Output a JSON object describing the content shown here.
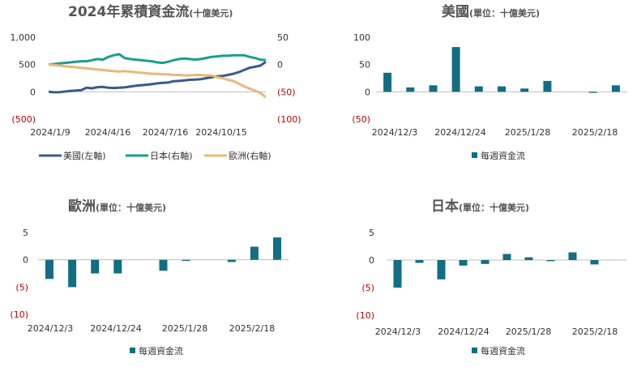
{
  "colors": {
    "us": "#3a5a8c",
    "jp": "#1a9e8f",
    "eu": "#e8b87a",
    "bar": "#126e82",
    "axis": "#bfbfbf",
    "negative": "#c00000"
  },
  "chart_data": [
    {
      "id": "cumulative",
      "type": "line",
      "title": "2024年累積資金流",
      "title_unit": "(十億美元)",
      "x_ticks": [
        "2024/1/9",
        "2024/4/16",
        "2024/7/16",
        "2024/10/15"
      ],
      "y_left_ticks": [
        "1,000",
        "500",
        "0",
        "(500)"
      ],
      "y_right_ticks": [
        "50",
        "0",
        "(50)",
        "(100)"
      ],
      "y_left_range": [
        -500,
        1000
      ],
      "y_right_range": [
        -100,
        50
      ],
      "legend_position": "bottom",
      "series": [
        {
          "name": "美國(左軸)",
          "axis": "left",
          "color": "#3a5a8c",
          "values": [
            0,
            -8,
            -5,
            5,
            15,
            25,
            30,
            75,
            65,
            85,
            90,
            75,
            70,
            75,
            80,
            95,
            110,
            120,
            130,
            140,
            155,
            165,
            170,
            195,
            200,
            210,
            220,
            225,
            230,
            250,
            265,
            285,
            290,
            310,
            330,
            360,
            400,
            440,
            460,
            480,
            550
          ]
        },
        {
          "name": "日本(右軸)",
          "axis": "right",
          "color": "#1a9e8f",
          "values": [
            0,
            1,
            2,
            3,
            4,
            5,
            6,
            6,
            8,
            10,
            9,
            14,
            17,
            19,
            12,
            10,
            9,
            8,
            7,
            6,
            4,
            3,
            5,
            8,
            10,
            11,
            10,
            9,
            10,
            12,
            14,
            15,
            16,
            16,
            17,
            17,
            17,
            14,
            12,
            9,
            8
          ]
        },
        {
          "name": "歐洲(右軸)",
          "axis": "right",
          "color": "#e8b87a",
          "values": [
            0,
            -1,
            -2,
            -3,
            -4,
            -5,
            -6,
            -7,
            -8,
            -9,
            -10,
            -11,
            -12,
            -13,
            -12,
            -13,
            -14,
            -15,
            -16,
            -17,
            -17,
            -18,
            -18,
            -19,
            -19,
            -20,
            -20,
            -19,
            -19,
            -20,
            -20,
            -23,
            -25,
            -28,
            -30,
            -35,
            -40,
            -44,
            -48,
            -52,
            -60
          ]
        }
      ]
    },
    {
      "id": "us-weekly",
      "type": "bar",
      "title": "美國",
      "title_unit": "(單位：十億美元)",
      "y_ticks": [
        "100",
        "50",
        "0",
        "(50)"
      ],
      "ylim": [
        -50,
        100
      ],
      "x_ticks": [
        "2024/12/3",
        "2024/12/24",
        "2025/1/28",
        "2025/2/18"
      ],
      "legend": "每週資金流",
      "values": [
        35,
        8,
        12,
        82,
        10,
        10,
        6,
        20,
        0,
        -2,
        12
      ]
    },
    {
      "id": "eu-weekly",
      "type": "bar",
      "title": "歐洲",
      "title_unit": "(單位：十億美元)",
      "y_ticks": [
        "5",
        "0",
        "(5)",
        "(10)"
      ],
      "ylim": [
        -10,
        5
      ],
      "x_ticks": [
        "2024/12/3",
        "2024/12/24",
        "2025/1/28",
        "2025/2/18"
      ],
      "legend": "每週資金流",
      "values": [
        -3.5,
        -5,
        -2.5,
        -2.5,
        0,
        -2,
        -0.2,
        0,
        -0.4,
        2.4,
        4.1
      ]
    },
    {
      "id": "jp-weekly",
      "type": "bar",
      "title": "日本",
      "title_unit": "(單位：十億美元)",
      "y_ticks": [
        "5",
        "0",
        "(5)",
        "(10)"
      ],
      "ylim": [
        -10,
        5
      ],
      "x_ticks": [
        "2024/12/3",
        "2024/12/24",
        "2025/1/28",
        "2025/2/18"
      ],
      "legend": "每週資金流",
      "values": [
        -5,
        -0.5,
        -3.5,
        -1,
        -0.7,
        1.1,
        0.5,
        -0.2,
        1.4,
        -0.8,
        0
      ]
    }
  ]
}
